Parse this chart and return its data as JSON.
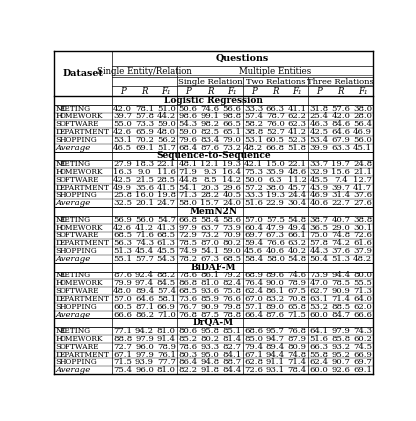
{
  "sections": [
    {
      "name": "Logistic Regression",
      "rows": [
        [
          "Meeting",
          42.0,
          78.1,
          51.0,
          50.6,
          74.6,
          56.6,
          33.3,
          66.3,
          41.1,
          31.8,
          57.6,
          38.0
        ],
        [
          "Homework",
          39.7,
          57.8,
          44.2,
          98.6,
          99.1,
          98.8,
          57.4,
          78.7,
          62.2,
          25.4,
          42.0,
          28.0
        ],
        [
          "Software",
          55.0,
          73.3,
          59.0,
          54.3,
          98.2,
          66.5,
          58.2,
          76.0,
          62.3,
          46.3,
          84.6,
          56.4
        ],
        [
          "Department",
          42.6,
          65.9,
          48.0,
          59.0,
          82.5,
          65.1,
          38.8,
          52.7,
          41.2,
          42.5,
          64.6,
          46.9
        ],
        [
          "Shopping",
          53.1,
          70.2,
          56.2,
          79.6,
          83.4,
          79.0,
          53.1,
          60.5,
          52.3,
          53.4,
          67.9,
          56.0
        ],
        [
          "Average",
          46.5,
          69.1,
          51.7,
          68.4,
          87.6,
          73.2,
          48.2,
          66.8,
          51.8,
          39.9,
          63.3,
          45.1
        ]
      ]
    },
    {
      "name": "Sequence-to-Sequence",
      "rows": [
        [
          "Meeting",
          27.9,
          18.3,
          22.1,
          48.1,
          12.1,
          19.3,
          42.1,
          15.0,
          22.1,
          33.7,
          19.7,
          24.8
        ],
        [
          "Homework",
          16.3,
          9.0,
          11.6,
          71.9,
          9.3,
          16.4,
          75.3,
          35.9,
          48.6,
          32.9,
          15.6,
          21.1
        ],
        [
          "Software",
          42.5,
          21.5,
          28.5,
          44.8,
          8.5,
          14.2,
          50.0,
          6.3,
          11.2,
          45.5,
          7.4,
          12.7
        ],
        [
          "Department",
          49.9,
          35.6,
          41.5,
          54.1,
          20.3,
          29.6,
          57.2,
          38.0,
          45.7,
          43.9,
          39.7,
          41.7
        ],
        [
          "Shopping",
          25.8,
          16.0,
          19.8,
          71.3,
          28.2,
          40.5,
          33.3,
          19.3,
          24.4,
          46.9,
          31.4,
          37.6
        ],
        [
          "Average",
          32.5,
          20.1,
          24.7,
          58.0,
          15.7,
          24.0,
          51.6,
          22.9,
          30.4,
          40.6,
          22.7,
          27.6
        ]
      ]
    },
    {
      "name": "MemN2N",
      "rows": [
        [
          "Meeting",
          56.9,
          56.0,
          54.7,
          66.8,
          58.4,
          58.6,
          57.0,
          57.5,
          54.8,
          38.7,
          40.7,
          38.8
        ],
        [
          "Homework",
          42.6,
          41.2,
          41.3,
          97.9,
          63.7,
          73.9,
          60.4,
          47.9,
          49.4,
          36.5,
          29.0,
          30.1
        ],
        [
          "Software",
          68.5,
          71.6,
          68.5,
          72.9,
          73.2,
          70.9,
          69.7,
          67.3,
          66.1,
          75.0,
          74.8,
          72.6
        ],
        [
          "Department",
          56.3,
          74.3,
          61.3,
          78.5,
          87.0,
          80.2,
          59.4,
          76.6,
          63.2,
          57.8,
          74.2,
          61.6
        ],
        [
          "Shopping",
          51.3,
          45.4,
          45.5,
          74.9,
          54.1,
          59.0,
          45.6,
          40.6,
          40.2,
          44.3,
          37.6,
          37.9
        ],
        [
          "Average",
          55.1,
          57.7,
          54.3,
          78.2,
          67.3,
          68.5,
          58.4,
          58.0,
          54.8,
          50.4,
          51.3,
          48.2
        ]
      ]
    },
    {
      "name": "BiDAF-M",
      "rows": [
        [
          "Meeting",
          87.6,
          92.4,
          88.2,
          78.6,
          86.1,
          79.2,
          68.9,
          89.6,
          74.6,
          73.9,
          94.4,
          80.0
        ],
        [
          "Homework",
          79.9,
          97.4,
          84.5,
          86.8,
          81.0,
          82.4,
          76.4,
          90.0,
          78.9,
          47.0,
          78.5,
          55.5
        ],
        [
          "Software",
          48.0,
          89.4,
          57.4,
          68.5,
          93.6,
          75.8,
          62.4,
          86.1,
          67.5,
          62.7,
          90.9,
          71.3
        ],
        [
          "Department",
          57.0,
          64.6,
          58.1,
          73.6,
          85.9,
          76.6,
          67.0,
          83.2,
          70.8,
          63.1,
          71.4,
          64.0
        ],
        [
          "Shopping",
          60.5,
          87.1,
          66.9,
          76.7,
          90.9,
          79.8,
          57.1,
          89.0,
          65.8,
          53.2,
          88.5,
          62.0
        ],
        [
          "Average",
          66.6,
          86.2,
          71.0,
          76.8,
          87.5,
          78.8,
          66.4,
          87.6,
          71.5,
          60.0,
          84.7,
          66.6
        ]
      ]
    },
    {
      "name": "DrQA-M",
      "rows": [
        [
          "Meeting",
          77.1,
          94.2,
          81.0,
          80.6,
          95.8,
          85.1,
          68.6,
          95.7,
          76.8,
          64.1,
          97.9,
          74.3
        ],
        [
          "Homework",
          88.8,
          97.9,
          91.4,
          85.2,
          80.2,
          81.4,
          85.0,
          94.7,
          87.9,
          51.6,
          85.8,
          60.2
        ],
        [
          "Software",
          72.7,
          96.0,
          78.9,
          78.6,
          93.3,
          82.7,
          79.4,
          89.4,
          80.9,
          66.3,
          93.2,
          74.5
        ],
        [
          "Department",
          67.1,
          97.9,
          76.1,
          80.3,
          95.0,
          84.1,
          67.1,
          94.4,
          74.8,
          55.8,
          95.2,
          66.9
        ],
        [
          "Shopping",
          71.5,
          93.9,
          77.7,
          86.4,
          94.8,
          88.7,
          62.8,
          91.1,
          71.4,
          62.4,
          90.7,
          69.7
        ],
        [
          "Average",
          75.4,
          96.0,
          81.0,
          82.2,
          91.8,
          84.4,
          72.6,
          93.1,
          78.4,
          60.0,
          92.6,
          69.1
        ]
      ]
    }
  ]
}
